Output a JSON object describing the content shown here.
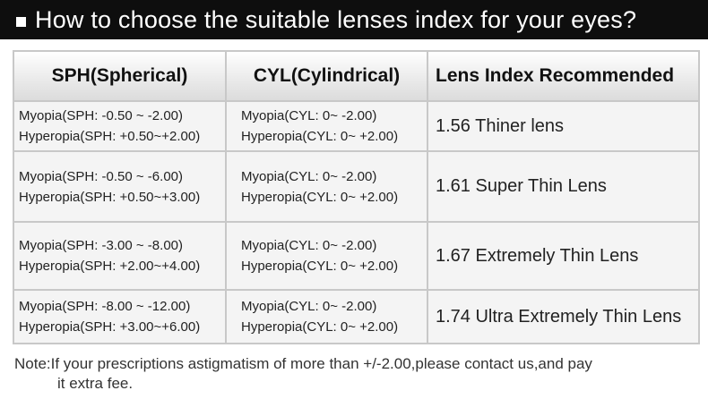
{
  "header": {
    "title": "How to choose the suitable lenses index for your eyes?"
  },
  "table": {
    "columns": [
      "SPH(Spherical)",
      "CYL(Cylindrical)",
      "Lens Index Recommended"
    ],
    "rows": [
      {
        "sph": [
          "Myopia(SPH: -0.50 ~ -2.00)",
          "Hyperopia(SPH: +0.50~+2.00)"
        ],
        "cyl": [
          "Myopia(CYL: 0~ -2.00)",
          "Hyperopia(CYL: 0~ +2.00)"
        ],
        "index": "1.56 Thiner lens"
      },
      {
        "sph": [
          "Myopia(SPH: -0.50 ~ -6.00)",
          "Hyperopia(SPH: +0.50~+3.00)"
        ],
        "cyl": [
          "Myopia(CYL: 0~ -2.00)",
          "Hyperopia(CYL: 0~ +2.00)"
        ],
        "index": "1.61 Super Thin Lens"
      },
      {
        "sph": [
          "Myopia(SPH:  -3.00 ~ -8.00)",
          "Hyperopia(SPH: +2.00~+4.00)"
        ],
        "cyl": [
          "Myopia(CYL: 0~ -2.00)",
          "Hyperopia(CYL: 0~ +2.00)"
        ],
        "index": "1.67 Extremely Thin Lens"
      },
      {
        "sph": [
          "Myopia(SPH:  -8.00 ~ -12.00)",
          "Hyperopia(SPH: +3.00~+6.00)"
        ],
        "cyl": [
          "Myopia(CYL: 0~ -2.00)",
          "Hyperopia(CYL: 0~ +2.00)"
        ],
        "index": "1.74 Ultra Extremely Thin Lens"
      }
    ]
  },
  "note": {
    "line1": "Note:If your prescriptions astigmatism of more than +/-2.00,please contact us,and pay",
    "line2": "it extra fee."
  }
}
